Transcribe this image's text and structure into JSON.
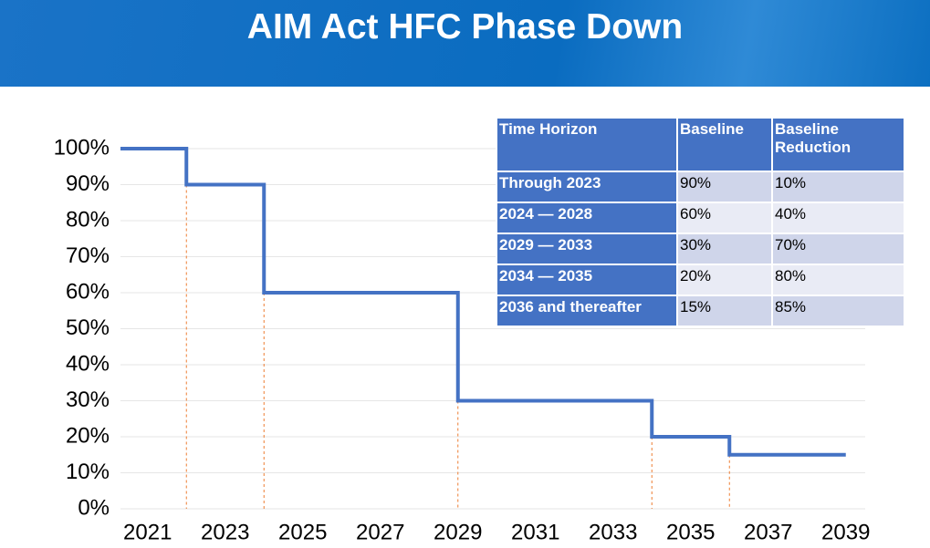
{
  "header": {
    "title": "AIM Act HFC Phase Down"
  },
  "chart_data": {
    "type": "line",
    "step": "post",
    "x": [
      2020.3,
      2022,
      2024,
      2029,
      2034,
      2036,
      2039
    ],
    "series": [
      {
        "color": "#4472c4",
        "values": [
          100,
          90,
          60,
          30,
          20,
          15,
          15
        ]
      }
    ],
    "drop_line_color": "#ed7d31",
    "xlim": [
      2020.3,
      2039.5
    ],
    "xticks": [
      2021,
      2023,
      2025,
      2027,
      2029,
      2031,
      2033,
      2035,
      2037,
      2039
    ],
    "ylim": [
      0,
      100
    ],
    "yticks": [
      {
        "value": 0,
        "label": "0%"
      },
      {
        "value": 10,
        "label": "10%"
      },
      {
        "value": 20,
        "label": "20%"
      },
      {
        "value": 30,
        "label": "30%"
      },
      {
        "value": 40,
        "label": "40%"
      },
      {
        "value": 50,
        "label": "50%"
      },
      {
        "value": 60,
        "label": "60%"
      },
      {
        "value": 70,
        "label": "70%"
      },
      {
        "value": 80,
        "label": "80%"
      },
      {
        "value": 90,
        "label": "90%"
      },
      {
        "value": 100,
        "label": "100%"
      }
    ],
    "grid": true
  },
  "table": {
    "columns": [
      "Time Horizon",
      "Baseline",
      "Baseline Reduction"
    ],
    "rows": [
      [
        "Through 2023",
        "90%",
        "10%"
      ],
      [
        "2024 — 2028",
        "60%",
        "40%"
      ],
      [
        "2029 — 2033",
        "30%",
        "70%"
      ],
      [
        "2034 — 2035",
        "20%",
        "80%"
      ],
      [
        "2036 and thereafter",
        "15%",
        "85%"
      ]
    ]
  }
}
